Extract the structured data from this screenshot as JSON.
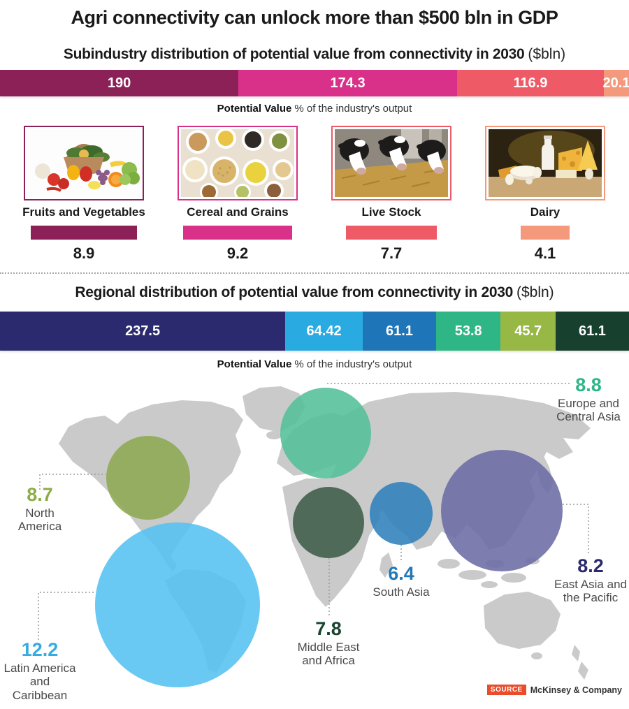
{
  "title": "Agri connectivity can unlock more than $500 bln in GDP",
  "caption": {
    "bold": "Potential Value",
    "rest": "% of the industry's output"
  },
  "sections": {
    "subindustry": {
      "heading": "Subindustry distribution of potential value from connectivity in 2030",
      "unit": "($bln)"
    },
    "regional": {
      "heading": "Regional distribution of potential value from connectivity in 2030",
      "unit": "($bln)"
    }
  },
  "chart_data": [
    {
      "type": "bar",
      "variant": "stacked-horizontal",
      "title": "Subindustry distribution of potential value from connectivity in 2030 ($bln)",
      "categories": [
        "Fruits and Vegetables",
        "Cereal and Grains",
        "Live Stock",
        "Dairy"
      ],
      "series": [
        {
          "name": "Potential value ($bln)",
          "values": [
            190,
            174.3,
            116.9,
            20.1
          ]
        },
        {
          "name": "Potential value (% of the industry's output)",
          "values": [
            8.9,
            9.2,
            7.7,
            4.1
          ]
        }
      ],
      "labels": [
        "190",
        "174.3",
        "116.9",
        "20.1"
      ],
      "pct_labels": [
        "8.9",
        "9.2",
        "7.7",
        "4.1"
      ],
      "colors": [
        "#8B2157",
        "#D9308A",
        "#EE5A66",
        "#F4997B"
      ]
    },
    {
      "type": "bar",
      "variant": "stacked-horizontal",
      "title": "Regional distribution of potential value from connectivity in 2030 ($bln)",
      "categories": [
        "East Asia and the Pacific",
        "Latin America and Caribbean",
        "South Asia",
        "Europe and Central Asia",
        "North America",
        "Middle East and Africa"
      ],
      "series": [
        {
          "name": "Potential value ($bln)",
          "values": [
            237.5,
            64.42,
            61.1,
            53.8,
            45.7,
            61.1
          ]
        },
        {
          "name": "Potential value (% of the industry's output)",
          "values": [
            8.2,
            12.2,
            6.4,
            8.8,
            8.7,
            7.8
          ]
        }
      ],
      "labels": [
        "237.5",
        "64.42",
        "61.1",
        "53.8",
        "45.7",
        "61.1"
      ],
      "pct_labels": [
        "8.2",
        "12.2",
        "6.4",
        "8.8",
        "8.7",
        "7.8"
      ],
      "colors": [
        "#2B2A6E",
        "#29ABE2",
        "#1E76B8",
        "#2FB686",
        "#97B845",
        "#17402E"
      ]
    },
    {
      "type": "bubble",
      "title": "Regional potential value as % of the industry's output (world map bubbles)",
      "regions": [
        {
          "id": "north-america",
          "name": "North America",
          "value": "8.7",
          "label_color": "#8FAC44",
          "bubble_color": "#8CA851"
        },
        {
          "id": "latin-america",
          "name": "Latin America and Caribbean",
          "value": "12.2",
          "label_color": "#35ABE0",
          "bubble_color": "#55C1F0"
        },
        {
          "id": "europe-central-asia",
          "name": "Europe and Central Asia",
          "value": "8.8",
          "label_color": "#2FB686",
          "bubble_color": "#53BF99"
        },
        {
          "id": "middle-east-africa",
          "name": "Middle East and Africa",
          "value": "7.8",
          "label_color": "#1A4430",
          "bubble_color": "#3D5C48"
        },
        {
          "id": "south-asia",
          "name": "South Asia",
          "value": "6.4",
          "label_color": "#2279B5",
          "bubble_color": "#2F80BC"
        },
        {
          "id": "east-asia-pacific",
          "name": "East Asia and the Pacific",
          "value": "8.2",
          "label_color": "#2B2A6E",
          "bubble_color": "#6C6BA5"
        }
      ]
    }
  ],
  "source": {
    "badge": "SOURCE",
    "name": "McKinsey & Company"
  }
}
